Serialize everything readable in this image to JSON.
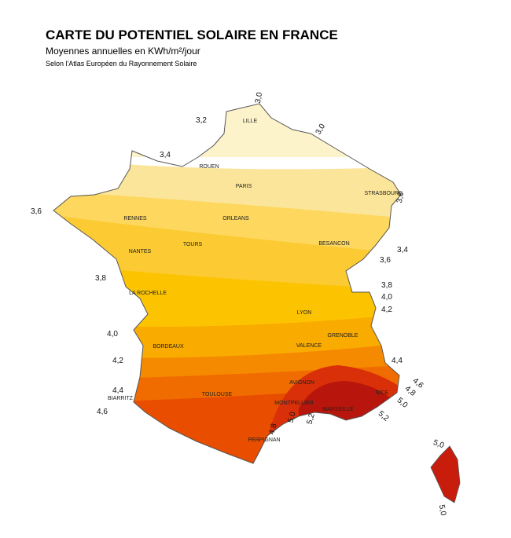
{
  "header": {
    "title": "CARTE DU POTENTIEL SOLAIRE EN FRANCE",
    "subtitle": "Moyennes annuelles en KWh/m²/jour",
    "source": "Selon l'Atlas Européen du Rayonnement Solaire"
  },
  "cities": [
    "LILLE",
    "ROUEN",
    "PARIS",
    "STRASBOURG",
    "RENNES",
    "ORLEANS",
    "TOURS",
    "BESANCON",
    "NANTES",
    "LA ROCHELLE",
    "LYON",
    "GRENOBLE",
    "VALENCE",
    "BORDEAUX",
    "AVIGNON",
    "TOULOUSE",
    "BIARRITZ",
    "MONTPELLIER",
    "NICE",
    "MARSEILLE",
    "PERPIGNAN"
  ],
  "isolines": [
    "3,2",
    "3,0",
    "3,0",
    "3,4",
    "3,6",
    "3,8",
    "4,0",
    "4,2",
    "4,4",
    "4,6",
    "3,6",
    "3,4",
    "3,6",
    "3,8",
    "4,0",
    "4,2",
    "4,4",
    "4,6",
    "4,8",
    "5,0",
    "5,2",
    "5,2",
    "5,0",
    "4,8",
    "5,0",
    "5,0"
  ]
}
